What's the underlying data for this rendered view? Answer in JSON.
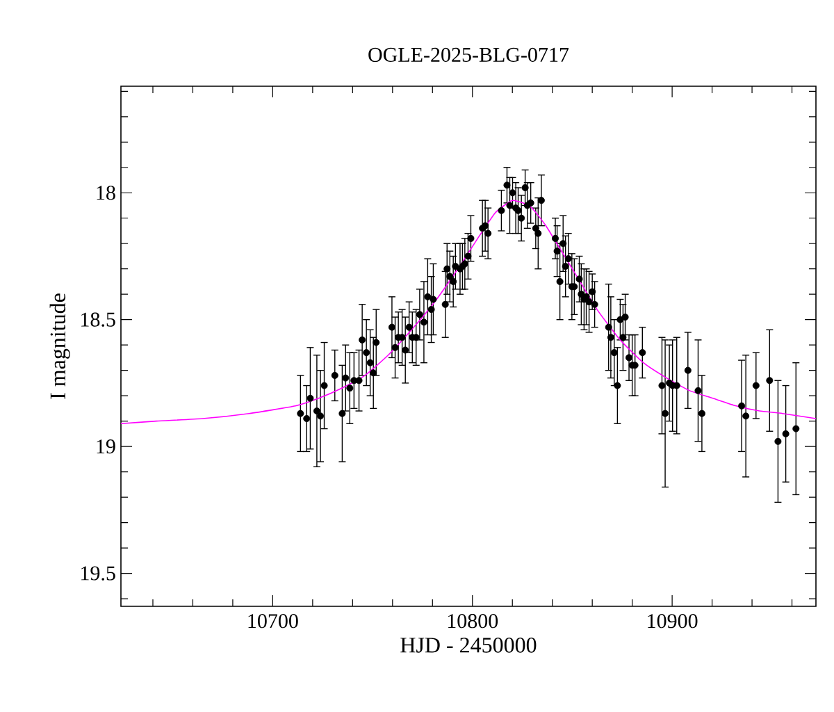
{
  "chart_data": {
    "type": "scatter",
    "title": "OGLE-2025-BLG-0717",
    "xlabel": "HJD - 2450000",
    "ylabel": "I magnitude",
    "xlim": [
      10624,
      10972
    ],
    "ylim": [
      19.63,
      17.58
    ],
    "xticks": [
      {
        "value": 10640,
        "label": null
      },
      {
        "value": 10660,
        "label": null
      },
      {
        "value": 10680,
        "label": null
      },
      10700,
      {
        "value": 10720,
        "label": null
      },
      {
        "value": 10740,
        "label": null
      },
      {
        "value": 10760,
        "label": null
      },
      {
        "value": 10780,
        "label": null
      },
      10800,
      {
        "value": 10820,
        "label": null
      },
      {
        "value": 10840,
        "label": null
      },
      {
        "value": 10860,
        "label": null
      },
      {
        "value": 10880,
        "label": null
      },
      10900,
      {
        "value": 10920,
        "label": null
      },
      {
        "value": 10940,
        "label": null
      },
      {
        "value": 10960,
        "label": null
      }
    ],
    "yticks": [
      {
        "value": 17.6,
        "label": null
      },
      {
        "value": 17.7,
        "label": null
      },
      {
        "value": 17.8,
        "label": null
      },
      {
        "value": 17.9,
        "label": null
      },
      18,
      {
        "value": 18.1,
        "label": null
      },
      {
        "value": 18.2,
        "label": null
      },
      {
        "value": 18.3,
        "label": null
      },
      {
        "value": 18.4,
        "label": null
      },
      18.5,
      {
        "value": 18.6,
        "label": null
      },
      {
        "value": 18.7,
        "label": null
      },
      {
        "value": 18.8,
        "label": null
      },
      {
        "value": 18.9,
        "label": null
      },
      19,
      {
        "value": 19.1,
        "label": null
      },
      {
        "value": 19.2,
        "label": null
      },
      {
        "value": 19.3,
        "label": null
      },
      {
        "value": 19.4,
        "label": null
      },
      19.5,
      {
        "value": 19.6,
        "label": null
      }
    ],
    "series": [
      {
        "type": "scatter",
        "marker": "circle",
        "color": "#000000",
        "x": [
          10713.9,
          10717.0,
          10718.8,
          10722.1,
          10723.9,
          10725.8,
          10731.1,
          10734.8,
          10736.5,
          10738.6,
          10740.7,
          10743.2,
          10744.8,
          10746.9,
          10748.8,
          10750.4,
          10751.8,
          10759.7,
          10761.3,
          10762.9,
          10764.8,
          10766.4,
          10768.3,
          10769.9,
          10771.8,
          10773.6,
          10775.7,
          10777.6,
          10779.4,
          10780.4,
          10786.4,
          10787.3,
          10788.7,
          10790.4,
          10791.5,
          10793.8,
          10795.0,
          10796.2,
          10797.8,
          10799.2,
          10805.0,
          10806.4,
          10807.8,
          10814.5,
          10817.3,
          10818.7,
          10820.1,
          10821.7,
          10822.9,
          10824.5,
          10826.4,
          10827.5,
          10829.2,
          10831.7,
          10832.9,
          10834.5,
          10841.5,
          10842.4,
          10843.8,
          10845.4,
          10846.6,
          10848.0,
          10849.8,
          10851.0,
          10853.5,
          10854.5,
          10855.9,
          10857.0,
          10858.4,
          10860.0,
          10861.2,
          10868.2,
          10869.3,
          10871.0,
          10872.6,
          10874.0,
          10875.4,
          10876.5,
          10878.4,
          10880.0,
          10881.4,
          10885.1,
          10894.9,
          10896.5,
          10898.6,
          10900.2,
          10902.3,
          10907.9,
          10913.0,
          10914.9,
          10934.8,
          10936.9,
          10942.0,
          10948.8,
          10953.0,
          10956.9,
          10962.0
        ],
        "values": [
          18.87,
          18.89,
          18.81,
          18.86,
          18.88,
          18.76,
          18.72,
          18.87,
          18.73,
          18.77,
          18.74,
          18.74,
          18.58,
          18.63,
          18.67,
          18.71,
          18.59,
          18.53,
          18.61,
          18.57,
          18.57,
          18.62,
          18.53,
          18.57,
          18.57,
          18.48,
          18.51,
          18.41,
          18.46,
          18.42,
          18.44,
          18.3,
          18.33,
          18.35,
          18.29,
          18.3,
          18.29,
          18.28,
          18.25,
          18.18,
          18.14,
          18.13,
          18.16,
          18.07,
          17.97,
          18.05,
          18.0,
          18.06,
          18.07,
          18.1,
          17.98,
          18.05,
          18.04,
          18.14,
          18.16,
          18.03,
          18.18,
          18.23,
          18.35,
          18.2,
          18.29,
          18.26,
          18.37,
          18.37,
          18.34,
          18.4,
          18.42,
          18.41,
          18.43,
          18.39,
          18.44,
          18.53,
          18.57,
          18.63,
          18.76,
          18.5,
          18.57,
          18.49,
          18.65,
          18.68,
          18.68,
          18.63,
          18.76,
          18.87,
          18.75,
          18.76,
          18.76,
          18.7,
          18.78,
          18.87,
          18.84,
          18.88,
          18.76,
          18.74,
          18.98,
          18.95,
          18.93
        ],
        "errors": [
          0.15,
          0.13,
          0.2,
          0.22,
          0.18,
          0.17,
          0.1,
          0.19,
          0.13,
          0.14,
          0.11,
          0.12,
          0.14,
          0.13,
          0.13,
          0.14,
          0.13,
          0.12,
          0.12,
          0.1,
          0.11,
          0.13,
          0.1,
          0.1,
          0.11,
          0.1,
          0.16,
          0.15,
          0.13,
          0.14,
          0.13,
          0.1,
          0.1,
          0.1,
          0.09,
          0.1,
          0.09,
          0.1,
          0.09,
          0.09,
          0.11,
          0.1,
          0.1,
          0.08,
          0.07,
          0.11,
          0.06,
          0.1,
          0.09,
          0.09,
          0.07,
          0.09,
          0.08,
          0.08,
          0.14,
          0.1,
          0.08,
          0.1,
          0.15,
          0.11,
          0.12,
          0.1,
          0.13,
          0.11,
          0.09,
          0.12,
          0.12,
          0.11,
          0.12,
          0.07,
          0.09,
          0.17,
          0.16,
          0.13,
          0.15,
          0.08,
          0.13,
          0.09,
          0.09,
          0.12,
          0.12,
          0.1,
          0.19,
          0.29,
          0.15,
          0.18,
          0.19,
          0.15,
          0.2,
          0.15,
          0.18,
          0.24,
          0.13,
          0.2,
          0.24,
          0.19,
          0.26
        ]
      },
      {
        "type": "line",
        "color": "#ff00ff",
        "marker": "none",
        "x": [
          10624,
          10641.7,
          10664.9,
          10688.2,
          10711.4,
          10723.0,
          10734.6,
          10746.2,
          10757.8,
          10769.5,
          10781.1,
          10792.7,
          10804.3,
          10811.3,
          10815.9,
          10820.1,
          10825.2,
          10829.8,
          10836.8,
          10843.8,
          10850.8,
          10862.4,
          10874.0,
          10885.6,
          10897.2,
          10908.8,
          10920.4,
          10932.1,
          10943.7,
          10955.3,
          10972
        ],
        "values": [
          18.91,
          18.9,
          18.89,
          18.87,
          18.84,
          18.81,
          18.77,
          18.72,
          18.64,
          18.54,
          18.43,
          18.3,
          18.16,
          18.08,
          18.05,
          18.03,
          18.04,
          18.06,
          18.13,
          18.22,
          18.31,
          18.46,
          18.58,
          18.67,
          18.73,
          18.78,
          18.81,
          18.84,
          18.86,
          18.87,
          18.89
        ]
      }
    ]
  }
}
